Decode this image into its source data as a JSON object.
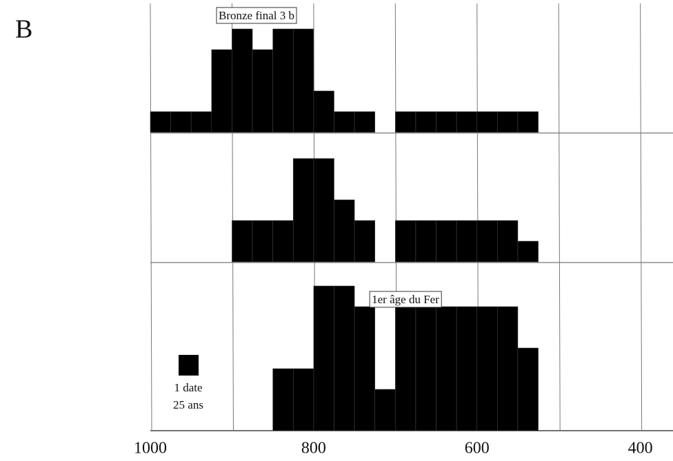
{
  "panel": "B",
  "chart_data": {
    "type": "histogram",
    "bins": [
      1000,
      975,
      950,
      925,
      900,
      875,
      850,
      825,
      800,
      775,
      750,
      725,
      700,
      675,
      650,
      625,
      600,
      575,
      550,
      525
    ],
    "series": [
      {
        "color": "#000000",
        "values": [
          1,
          1,
          1,
          4,
          5,
          4,
          5,
          5,
          2,
          1,
          1,
          0,
          1,
          1,
          1,
          1,
          1,
          1,
          1
        ]
      },
      {
        "color": "#000000",
        "values": [
          0,
          0,
          0,
          0,
          2,
          2,
          2,
          5,
          5,
          3,
          2,
          0,
          2,
          2,
          2,
          2,
          2,
          2,
          1
        ]
      },
      {
        "color": "#000000",
        "values": [
          0,
          0,
          0,
          0,
          0,
          0,
          3,
          3,
          7,
          7,
          6,
          2,
          6,
          6,
          6,
          6,
          6,
          6,
          4
        ]
      }
    ],
    "annotations": [
      "Bronze final 3 b",
      null,
      "1er âge du Fer"
    ],
    "legend": [
      "1 date",
      "25 ans"
    ],
    "xlim": [
      1000,
      360
    ],
    "xticks": [
      1000,
      800,
      600,
      400
    ],
    "xgrid": [
      1000,
      900,
      800,
      700,
      600,
      500,
      400
    ],
    "ylim": [
      0,
      8
    ]
  }
}
